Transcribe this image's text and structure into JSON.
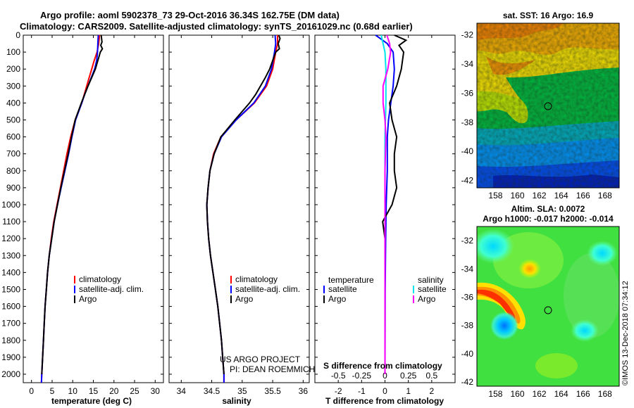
{
  "header": {
    "title_line1": "Argo profile: aoml 5902378_73 29-Oct-2016 36.34S 162.75E (DM data)",
    "title_line2": "Climatology: CARS2009. Satellite-adjusted climatology: synTS_20161029.nc (0.68d earlier)"
  },
  "colors": {
    "climatology": "#ff0000",
    "satellite": "#0000ff",
    "argo": "#000000",
    "sat_salinity": "#00e5ee",
    "argo_salinity": "#ff00ff"
  },
  "chart_data": [
    {
      "id": "temperature-profile",
      "type": "line",
      "xlabel": "temperature (deg C)",
      "xlim": [
        -2,
        32
      ],
      "xticks": [
        "0",
        "5",
        "10",
        "15",
        "20",
        "25",
        "30"
      ],
      "ylim": [
        0,
        2050
      ],
      "yticks": [
        "0",
        "100",
        "200",
        "300",
        "400",
        "500",
        "600",
        "700",
        "800",
        "900",
        "1000",
        "1100",
        "1200",
        "1300",
        "1400",
        "1500",
        "1600",
        "1700",
        "1800",
        "1900",
        "2000"
      ],
      "legend": [
        "climatology",
        "satellite-adj. clim.",
        "Argo"
      ],
      "series": [
        {
          "name": "climatology",
          "depth": [
            0,
            50,
            100,
            150,
            200,
            250,
            300,
            350,
            400,
            500,
            600,
            700,
            800,
            900,
            1000,
            1100,
            1200,
            1300,
            1400,
            1500,
            1600,
            1700,
            1800,
            1900,
            2000,
            2050
          ],
          "values": [
            16.5,
            16.3,
            15.9,
            15.2,
            14.6,
            14.0,
            13.4,
            12.8,
            12.2,
            10.6,
            9.5,
            8.6,
            7.8,
            7.0,
            6.2,
            5.4,
            4.8,
            4.3,
            3.9,
            3.6,
            3.3,
            3.1,
            2.9,
            2.7,
            2.5,
            2.4
          ]
        },
        {
          "name": "satellite-adj. clim.",
          "depth": [
            0,
            50,
            100,
            150,
            200,
            250,
            300,
            350,
            400,
            500,
            600,
            700,
            800,
            900,
            1000,
            1100,
            1200,
            1300,
            1400,
            1500,
            1600,
            1700,
            1800,
            1900,
            2000,
            2050
          ],
          "values": [
            16.2,
            16.1,
            16.0,
            15.8,
            15.3,
            14.5,
            13.7,
            12.9,
            12.2,
            10.7,
            9.8,
            9.0,
            8.1,
            7.2,
            6.3,
            5.5,
            4.9,
            4.3,
            3.9,
            3.6,
            3.3,
            3.1,
            2.9,
            2.7,
            2.5,
            2.4
          ]
        },
        {
          "name": "Argo",
          "depth": [
            0,
            20,
            40,
            60,
            80,
            100,
            150,
            200,
            250,
            300,
            350,
            400,
            500,
            600,
            700,
            800,
            900,
            1000,
            1100,
            1200,
            1300,
            1400,
            1500,
            1600,
            1700,
            1800,
            1900,
            2000
          ],
          "values": [
            16.9,
            17.0,
            17.1,
            16.8,
            17.2,
            16.7,
            16.1,
            15.5,
            14.6,
            13.7,
            12.9,
            12.1,
            10.6,
            9.7,
            8.9,
            8.0,
            7.1,
            6.3,
            5.5,
            4.9,
            4.3,
            3.9,
            3.6,
            3.3,
            3.1,
            2.9,
            2.7,
            2.5
          ]
        }
      ]
    },
    {
      "id": "salinity-profile",
      "type": "line",
      "xlabel": "salinity",
      "xlim": [
        33.8,
        36.1
      ],
      "xticks": [
        "34",
        "34.5",
        "35",
        "35.5",
        "36"
      ],
      "ylim": [
        0,
        2050
      ],
      "legend": [
        "climatology",
        "satellite-adj. clim.",
        "Argo"
      ],
      "annotations": [
        "US ARGO PROJECT",
        "PI: DEAN ROEMMICH"
      ],
      "series": [
        {
          "name": "climatology",
          "depth": [
            0,
            50,
            100,
            200,
            300,
            400,
            500,
            600,
            700,
            800,
            900,
            1000,
            1100,
            1200,
            1300,
            1400,
            1500,
            1600,
            1700,
            1800,
            1900,
            2000,
            2050
          ],
          "values": [
            35.58,
            35.58,
            35.55,
            35.5,
            35.4,
            35.2,
            34.9,
            34.65,
            34.53,
            34.47,
            34.44,
            34.42,
            34.43,
            34.45,
            34.48,
            34.52,
            34.56,
            34.6,
            34.63,
            34.66,
            34.68,
            34.7,
            34.7
          ]
        },
        {
          "name": "satellite-adj. clim.",
          "depth": [
            0,
            50,
            100,
            200,
            300,
            400,
            500,
            600,
            700,
            800,
            900,
            1000,
            1100,
            1200,
            1300,
            1400,
            1500,
            1600,
            1700,
            1800,
            1900,
            2000,
            2050
          ],
          "values": [
            35.54,
            35.55,
            35.53,
            35.48,
            35.38,
            35.19,
            34.9,
            34.66,
            34.54,
            34.47,
            34.44,
            34.42,
            34.43,
            34.45,
            34.48,
            34.52,
            34.56,
            34.6,
            34.63,
            34.66,
            34.68,
            34.7,
            34.7
          ]
        },
        {
          "name": "Argo",
          "depth": [
            0,
            20,
            50,
            80,
            100,
            150,
            200,
            250,
            300,
            350,
            400,
            500,
            600,
            700,
            800,
            900,
            1000,
            1100,
            1200,
            1300,
            1400,
            1500,
            1600,
            1700,
            1800,
            1900,
            2000
          ],
          "values": [
            35.6,
            35.62,
            35.59,
            35.61,
            35.55,
            35.5,
            35.45,
            35.38,
            35.3,
            35.22,
            35.12,
            34.88,
            34.65,
            34.54,
            34.47,
            34.44,
            34.42,
            34.43,
            34.45,
            34.48,
            34.52,
            34.56,
            34.6,
            34.63,
            34.66,
            34.68,
            34.7
          ]
        }
      ]
    },
    {
      "id": "difference-profile",
      "type": "line",
      "xlabel": "T difference from climatology",
      "xlabel_top": "S difference from climatology",
      "xlim": [
        -3,
        3
      ],
      "xticks": [
        "-2",
        "-1",
        "0",
        "1",
        "2"
      ],
      "xticks_salinity": [
        "-0.5",
        "-0.25",
        "0",
        "0.25",
        "0.5"
      ],
      "legend_temperature_title": "temperature",
      "legend_salinity_title": "salinity",
      "legend_temperature": [
        "satellite",
        "Argo"
      ],
      "legend_salinity": [
        "satellite",
        "Argo"
      ],
      "series": [
        {
          "name": "T satellite",
          "depth": [
            0,
            20,
            50,
            100,
            200,
            300,
            400,
            500,
            600,
            800,
            1000,
            1200,
            1500,
            2000
          ],
          "values": [
            -0.4,
            -0.2,
            0.1,
            0.35,
            0.4,
            0.35,
            0.25,
            0.15,
            0.1,
            0.1,
            0.05,
            0.03,
            0.01,
            0.0
          ]
        },
        {
          "name": "T Argo",
          "depth": [
            0,
            30,
            60,
            100,
            200,
            300,
            400,
            500,
            600,
            700,
            800,
            900,
            1000,
            1100,
            1200,
            1400,
            1600,
            2000
          ],
          "values": [
            0.4,
            0.9,
            0.6,
            0.8,
            0.7,
            0.5,
            0.2,
            0.3,
            0.5,
            0.4,
            0.4,
            0.5,
            0.3,
            -0.1,
            0.0,
            0.0,
            0.0,
            0.0
          ]
        },
        {
          "name": "S satellite",
          "depth": [
            0,
            50,
            100,
            200,
            400,
            600,
            1000,
            1500,
            2000
          ],
          "values": [
            -0.04,
            -0.02,
            0.0,
            0.01,
            0.01,
            0.0,
            0.0,
            0.0,
            0.0
          ]
        },
        {
          "name": "S Argo",
          "depth": [
            0,
            50,
            100,
            200,
            300,
            400,
            500,
            600,
            800,
            1000,
            2000
          ],
          "values": [
            0.02,
            0.05,
            0.06,
            0.03,
            -0.02,
            -0.02,
            0.0,
            0.01,
            0.0,
            0.0,
            0.0
          ]
        }
      ]
    },
    {
      "id": "sst-map",
      "type": "heatmap",
      "title": "sat. SST: 16 Argo: 16.9",
      "xticks": [
        "158",
        "160",
        "162",
        "164",
        "166",
        "168"
      ],
      "yticks": [
        "-32",
        "-34",
        "-36",
        "-38",
        "-40",
        "-42"
      ],
      "marker": {
        "lon": 162.75,
        "lat": -36.34
      }
    },
    {
      "id": "sla-map",
      "type": "heatmap",
      "title_line1": "Altim. SLA: 0.0072",
      "title_line2": "Argo h1000: -0.017 h2000: -0.014",
      "xticks": [
        "158",
        "160",
        "162",
        "164",
        "166",
        "168"
      ],
      "yticks": [
        "-32",
        "-34",
        "-36",
        "-38",
        "-40",
        "-42"
      ],
      "marker": {
        "lon": 162.75,
        "lat": -36.34
      }
    }
  ],
  "footer": {
    "credit": "©IMOS 13-Dec-2018 07:34:12"
  }
}
